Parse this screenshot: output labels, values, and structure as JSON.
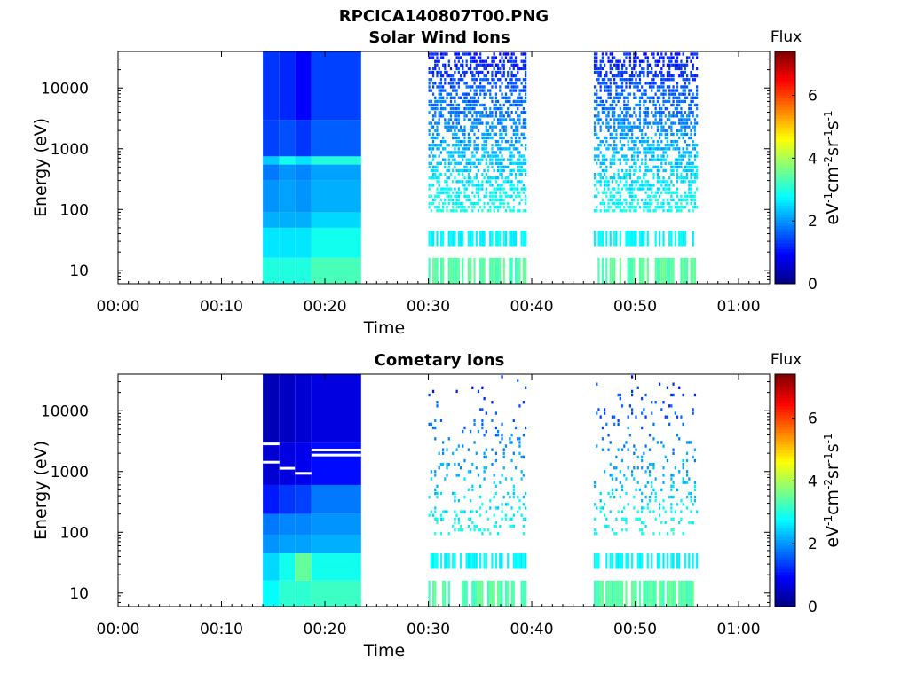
{
  "figure_title": "RPCICA140807T00.PNG",
  "chart_data": [
    {
      "type": "heatmap",
      "title": "Solar Wind Ions",
      "xlabel": "Time",
      "ylabel": "Energy (eV)",
      "y_scale": "log",
      "ylim": [
        6,
        40000
      ],
      "x_range_minutes": [
        0,
        63
      ],
      "x_ticks": [
        "00:00",
        "00:10",
        "00:20",
        "00:30",
        "00:40",
        "00:50",
        "01:00"
      ],
      "y_ticks": [
        "10",
        "100",
        "1000",
        "10000"
      ],
      "colorbar": {
        "label": "Flux",
        "units": "eV-1cm-2sr-1s-1",
        "range": [
          0,
          7.4
        ],
        "ticks": [
          "0",
          "2",
          "4",
          "6"
        ],
        "colormap": "jet"
      },
      "data_intervals_minutes": [
        [
          14,
          23.5
        ],
        [
          30,
          39.5
        ],
        [
          46,
          56
        ]
      ],
      "dense_block": {
        "columns": [
          {
            "t": [
              14,
              15.6
            ],
            "levels": [
              {
                "e": [
                  6,
                  16
                ],
                "v": 3.0
              },
              {
                "e": [
                  16,
                  50
                ],
                "v": 2.6
              },
              {
                "e": [
                  50,
                  90
                ],
                "v": 2.2
              },
              {
                "e": [
                  90,
                  300
                ],
                "v": 2.0
              },
              {
                "e": [
                  300,
                  550
                ],
                "v": 1.8
              },
              {
                "e": [
                  550,
                  750
                ],
                "v": 2.4
              },
              {
                "e": [
                  750,
                  3000
                ],
                "v": 1.4
              },
              {
                "e": [
                  3000,
                  40000
                ],
                "v": 1.3
              }
            ]
          },
          {
            "t": [
              15.6,
              17.1
            ],
            "levels": [
              {
                "e": [
                  6,
                  16
                ],
                "v": 3.0
              },
              {
                "e": [
                  16,
                  50
                ],
                "v": 2.6
              },
              {
                "e": [
                  50,
                  90
                ],
                "v": 2.2
              },
              {
                "e": [
                  90,
                  300
                ],
                "v": 2.1
              },
              {
                "e": [
                  300,
                  550
                ],
                "v": 2.0
              },
              {
                "e": [
                  550,
                  750
                ],
                "v": 2.9
              },
              {
                "e": [
                  750,
                  3000
                ],
                "v": 1.5
              },
              {
                "e": [
                  3000,
                  40000
                ],
                "v": 1.2
              }
            ]
          },
          {
            "t": [
              17.1,
              18.7
            ],
            "levels": [
              {
                "e": [
                  6,
                  16
                ],
                "v": 3.0
              },
              {
                "e": [
                  16,
                  50
                ],
                "v": 2.6
              },
              {
                "e": [
                  50,
                  90
                ],
                "v": 2.2
              },
              {
                "e": [
                  90,
                  300
                ],
                "v": 2.0
              },
              {
                "e": [
                  300,
                  550
                ],
                "v": 1.9
              },
              {
                "e": [
                  550,
                  750
                ],
                "v": 2.6
              },
              {
                "e": [
                  750,
                  3000
                ],
                "v": 1.3
              },
              {
                "e": [
                  3000,
                  40000
                ],
                "v": 0.9
              }
            ]
          },
          {
            "t": [
              18.7,
              23.5
            ],
            "levels": [
              {
                "e": [
                  6,
                  16
                ],
                "v": 3.3
              },
              {
                "e": [
                  16,
                  50
                ],
                "v": 2.9
              },
              {
                "e": [
                  50,
                  90
                ],
                "v": 2.5
              },
              {
                "e": [
                  90,
                  300
                ],
                "v": 2.2
              },
              {
                "e": [
                  300,
                  550
                ],
                "v": 2.1
              },
              {
                "e": [
                  550,
                  750
                ],
                "v": 3.0
              },
              {
                "e": [
                  750,
                  3000
                ],
                "v": 1.6
              },
              {
                "e": [
                  3000,
                  40000
                ],
                "v": 1.4
              }
            ]
          }
        ]
      }
    },
    {
      "type": "heatmap",
      "title": "Cometary Ions",
      "xlabel": "Time",
      "ylabel": "Energy (eV)",
      "y_scale": "log",
      "ylim": [
        6,
        40000
      ],
      "x_range_minutes": [
        0,
        63
      ],
      "x_ticks": [
        "00:00",
        "00:10",
        "00:20",
        "00:30",
        "00:40",
        "00:50",
        "01:00"
      ],
      "y_ticks": [
        "10",
        "100",
        "1000",
        "10000"
      ],
      "colorbar": {
        "label": "Flux",
        "units": "eV-1cm-2sr-1s-1",
        "range": [
          0,
          7.4
        ],
        "ticks": [
          "0",
          "2",
          "4",
          "6"
        ],
        "colormap": "jet"
      },
      "data_intervals_minutes": [
        [
          14,
          23.5
        ],
        [
          30,
          39.5
        ],
        [
          46,
          56
        ]
      ],
      "dense_block": {
        "columns": [
          {
            "t": [
              14,
              15.6
            ],
            "levels": [
              {
                "e": [
                  6,
                  16
                ],
                "v": 2.8
              },
              {
                "e": [
                  16,
                  45
                ],
                "v": 2.5
              },
              {
                "e": [
                  45,
                  90
                ],
                "v": 2.0
              },
              {
                "e": [
                  90,
                  200
                ],
                "v": 1.8
              },
              {
                "e": [
                  200,
                  600
                ],
                "v": 1.1
              },
              {
                "e": [
                  600,
                  3000
                ],
                "v": 0.6
              },
              {
                "e": [
                  3000,
                  40000
                ],
                "v": 0.4
              }
            ]
          },
          {
            "t": [
              15.6,
              17.1
            ],
            "levels": [
              {
                "e": [
                  6,
                  16
                ],
                "v": 3.1
              },
              {
                "e": [
                  16,
                  45
                ],
                "v": 2.9
              },
              {
                "e": [
                  45,
                  90
                ],
                "v": 2.1
              },
              {
                "e": [
                  90,
                  200
                ],
                "v": 1.9
              },
              {
                "e": [
                  200,
                  600
                ],
                "v": 1.3
              },
              {
                "e": [
                  600,
                  3000
                ],
                "v": 0.7
              },
              {
                "e": [
                  3000,
                  40000
                ],
                "v": 0.5
              }
            ]
          },
          {
            "t": [
              17.1,
              18.7
            ],
            "levels": [
              {
                "e": [
                  6,
                  16
                ],
                "v": 3.1
              },
              {
                "e": [
                  16,
                  45
                ],
                "v": 3.5
              },
              {
                "e": [
                  45,
                  90
                ],
                "v": 2.1
              },
              {
                "e": [
                  90,
                  200
                ],
                "v": 1.9
              },
              {
                "e": [
                  200,
                  600
                ],
                "v": 1.4
              },
              {
                "e": [
                  600,
                  3000
                ],
                "v": 0.8
              },
              {
                "e": [
                  3000,
                  40000
                ],
                "v": 0.6
              }
            ]
          },
          {
            "t": [
              18.7,
              23.5
            ],
            "levels": [
              {
                "e": [
                  6,
                  16
                ],
                "v": 3.2
              },
              {
                "e": [
                  16,
                  45
                ],
                "v": 2.9
              },
              {
                "e": [
                  45,
                  90
                ],
                "v": 2.2
              },
              {
                "e": [
                  90,
                  200
                ],
                "v": 2.0
              },
              {
                "e": [
                  200,
                  600
                ],
                "v": 1.8
              },
              {
                "e": [
                  600,
                  3000
                ],
                "v": 1.0
              },
              {
                "e": [
                  3000,
                  40000
                ],
                "v": 0.7
              }
            ]
          }
        ]
      }
    }
  ]
}
